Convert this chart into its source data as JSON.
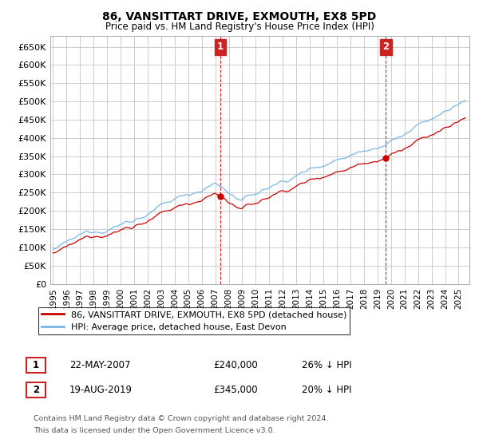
{
  "title": "86, VANSITTART DRIVE, EXMOUTH, EX8 5PD",
  "subtitle": "Price paid vs. HM Land Registry's House Price Index (HPI)",
  "ylim": [
    0,
    680000
  ],
  "yticks": [
    0,
    50000,
    100000,
    150000,
    200000,
    250000,
    300000,
    350000,
    400000,
    450000,
    500000,
    550000,
    600000,
    650000
  ],
  "xlim_start": 1994.8,
  "xlim_end": 2025.8,
  "sale1_date": 2007.38,
  "sale1_price": 240000,
  "sale2_date": 2019.62,
  "sale2_price": 345000,
  "hpi_color": "#7ab8e8",
  "price_color": "#cc0000",
  "annotation_box_color": "#cc2222",
  "grid_color": "#cccccc",
  "background_color": "#ffffff",
  "legend_label_price": "86, VANSITTART DRIVE, EXMOUTH, EX8 5PD (detached house)",
  "legend_label_hpi": "HPI: Average price, detached house, East Devon",
  "footnote1": "Contains HM Land Registry data © Crown copyright and database right 2024.",
  "footnote2": "This data is licensed under the Open Government Licence v3.0.",
  "table_row1": [
    "1",
    "22-MAY-2007",
    "£240,000",
    "26% ↓ HPI"
  ],
  "table_row2": [
    "2",
    "19-AUG-2019",
    "£345,000",
    "20% ↓ HPI"
  ]
}
